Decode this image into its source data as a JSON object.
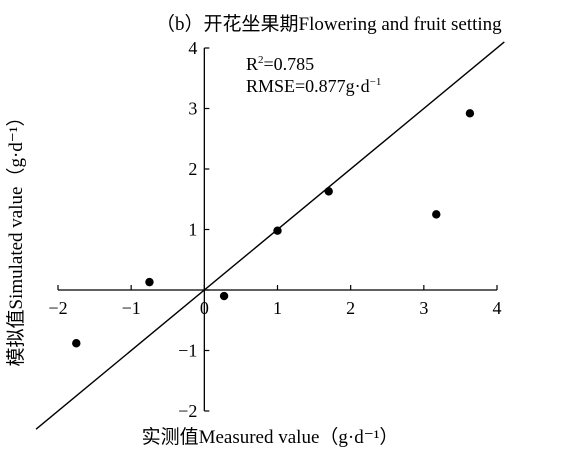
{
  "chart_data": {
    "type": "scatter",
    "title": "（b）开花坐果期Flowering and fruit setting",
    "xlabel": "实测值Measured value（g·d⁻¹）",
    "ylabel": "模拟值Simulated value（g·d⁻¹）",
    "xlim": [
      -2,
      4
    ],
    "ylim": [
      -2,
      4
    ],
    "x_ticks": [
      -2,
      -1,
      0,
      1,
      2,
      3,
      4
    ],
    "y_ticks": [
      -2,
      -1,
      0,
      1,
      2,
      3,
      4
    ],
    "axes_cross_at_origin": true,
    "grid": false,
    "points": [
      {
        "x": -1.75,
        "y": -0.88
      },
      {
        "x": -0.75,
        "y": 0.13
      },
      {
        "x": 0.27,
        "y": -0.1
      },
      {
        "x": 1.0,
        "y": 0.98
      },
      {
        "x": 1.7,
        "y": 1.63
      },
      {
        "x": 3.17,
        "y": 1.25
      },
      {
        "x": 3.63,
        "y": 2.92
      }
    ],
    "reference_line": {
      "slope": 1,
      "intercept": 0,
      "x_range": [
        -2.3,
        4.1
      ]
    },
    "annotations": {
      "r2_label": "R",
      "r2_sup": "2",
      "r2_value": "=0.785",
      "rmse_label": "RMSE=0.877g·d",
      "rmse_sup": "−1"
    }
  }
}
